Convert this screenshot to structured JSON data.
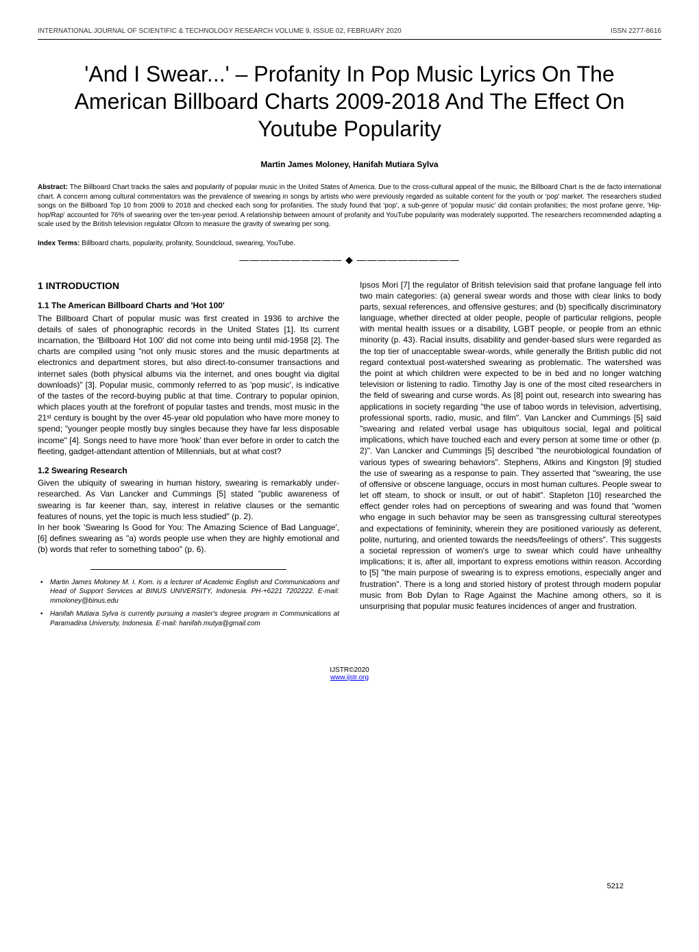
{
  "header": {
    "left": "INTERNATIONAL JOURNAL OF SCIENTIFIC & TECHNOLOGY RESEARCH VOLUME 9, ISSUE 02, FEBRUARY 2020",
    "right": "ISSN 2277-8616"
  },
  "title": "'And I Swear...' – Profanity In Pop Music Lyrics On The American Billboard Charts 2009-2018 And The Effect On Youtube Popularity",
  "authors": "Martin James Moloney, Hanifah Mutiara Sylva",
  "abstract_label": "Abstract:",
  "abstract_text": " The Billboard Chart tracks the sales and popularity of popular music in the United States of America. Due to the cross-cultural appeal of the music, the Billboard Chart is the de facto international chart. A concern among cultural commentators was the prevalence of swearing in songs by artists who were previously regarded as suitable content for the youth or 'pop' market. The researchers studied songs on the Billboard Top 10 from 2009 to 2018 and checked each song for profanities. The study found that 'pop', a sub-genre of 'popular music' did contain profanities; the most profane genre, 'Hip-hop/Rap' accounted for 76% of swearing over the ten-year period. A relationship between amount of profanity and YouTube popularity was moderately supported. The researchers recommended adapting a scale used by the British television regulator Ofcom to measure the gravity of swearing per song.",
  "index_label": "Index Terms:",
  "index_text": " Billboard charts, popularity, profanity, Soundcloud, swearing, YouTube.",
  "divider": "——————————  ◆  ——————————",
  "section1": {
    "heading": "1   INTRODUCTION",
    "sub11_heading": "1.1 The American Billboard Charts and 'Hot 100'",
    "sub11_text": "The Billboard Chart of popular music was first created in 1936 to archive the details of sales of phonographic records in the United States [1]. Its current incarnation, the 'Billboard Hot 100' did not come into being until mid-1958 [2]. The charts are compiled using \"not only music stores and the music departments at electronics and department stores, but also direct-to-consumer transactions and internet sales (both physical albums via the internet, and ones bought via digital downloads)\" [3]. Popular music, commonly referred to as 'pop music', is indicative of the tastes of the record-buying public at that time. Contrary to popular opinion, which places youth at the forefront of popular tastes and trends, most music in the 21ˢᵗ century is bought by the over 45-year old population who have more money to spend; \"younger people mostly buy singles because they have far less disposable income\" [4]. Songs need to have more 'hook' than ever before in order to catch the fleeting, gadget-attendant attention of Millennials, but at what cost?",
    "sub12_heading": "1.2 Swearing Research",
    "sub12_text_a": "Given the ubiquity of swearing in human history, swearing is remarkably under-researched. As Van Lancker and Cummings [5] stated \"public awareness of swearing is far keener than, say, interest in relative clauses or the semantic features of nouns, yet the topic is much less studied\" (p. 2).",
    "sub12_text_b": "In her book 'Swearing Is Good for You: The Amazing Science of Bad Language', [6] defines swearing as \"a) words people use when they are highly emotional and (b) words that refer to something taboo\" (p. 6)."
  },
  "author_info": {
    "item1": "Martin James Moloney M. I. Kom. is a lecturer of Academic English and Communications and Head of Support Services at BINUS UNIVERSITY, Indonesia. PH-+6221 7202222. E-mail: mmoloney@binus.edu",
    "item2": "Hanifah Mutiara Sylva is currently pursuing a master's degree program in Communications at Paramadina University, Indonesia. E-mail: hanifah.mutya@gmail.com"
  },
  "col2_text": "Ipsos Mori [7] the regulator of British television said that profane language fell into two main categories: (a) general swear words and those with clear links to body parts, sexual references, and offensive gestures; and (b) specifically discriminatory language, whether directed at older people, people of particular religions, people with mental health issues or a disability, LGBT people, or people from an ethnic minority (p. 43). Racial insults, disability and gender-based slurs were regarded as the top tier of unacceptable swear-words, while generally the British public did not regard contextual post-watershed swearing as problematic. The watershed was the point at which children were expected to be in bed and no longer watching television or listening to radio. Timothy Jay is one of the most cited researchers in the field of swearing and curse words. As [8] point out, research into swearing has applications in society regarding \"the use of taboo words in television, advertising, professional sports, radio, music, and film\". Van Lancker and Cummings [5] said \"swearing and related verbal usage has ubiquitous social, legal and political implications, which have touched each and every person at some time or other (p. 2)\". Van Lancker and Cummings [5] described \"the neurobiological foundation of various types of swearing behaviors\". Stephens, Atkins and Kingston [9] studied the use of swearing as a response to pain. They asserted that \"swearing, the use of offensive or obscene language, occurs in most human cultures. People swear to let off steam, to shock or insult, or out of habit\". Stapleton [10] researched the effect gender roles had on perceptions of swearing and was found that \"women who engage in such behavior may be seen as transgressing cultural stereotypes and expectations of femininity, wherein they are positioned variously as deferent, polite, nurturing, and oriented towards the needs/feelings of others\". This suggests a societal repression of women's urge to swear which could have unhealthy implications; it is, after all, important to express emotions within reason. According to [5] \"the main purpose of swearing is to express emotions, especially anger and frustration\". There is a long and storied history of protest through modern popular music from Bob Dylan to Rage Against the Machine among others, so it is unsurprising that popular music features incidences of anger and frustration.",
  "footer": {
    "copyright": "IJSTR©2020",
    "url": "www.ijstr.org"
  },
  "page_number": "5212"
}
